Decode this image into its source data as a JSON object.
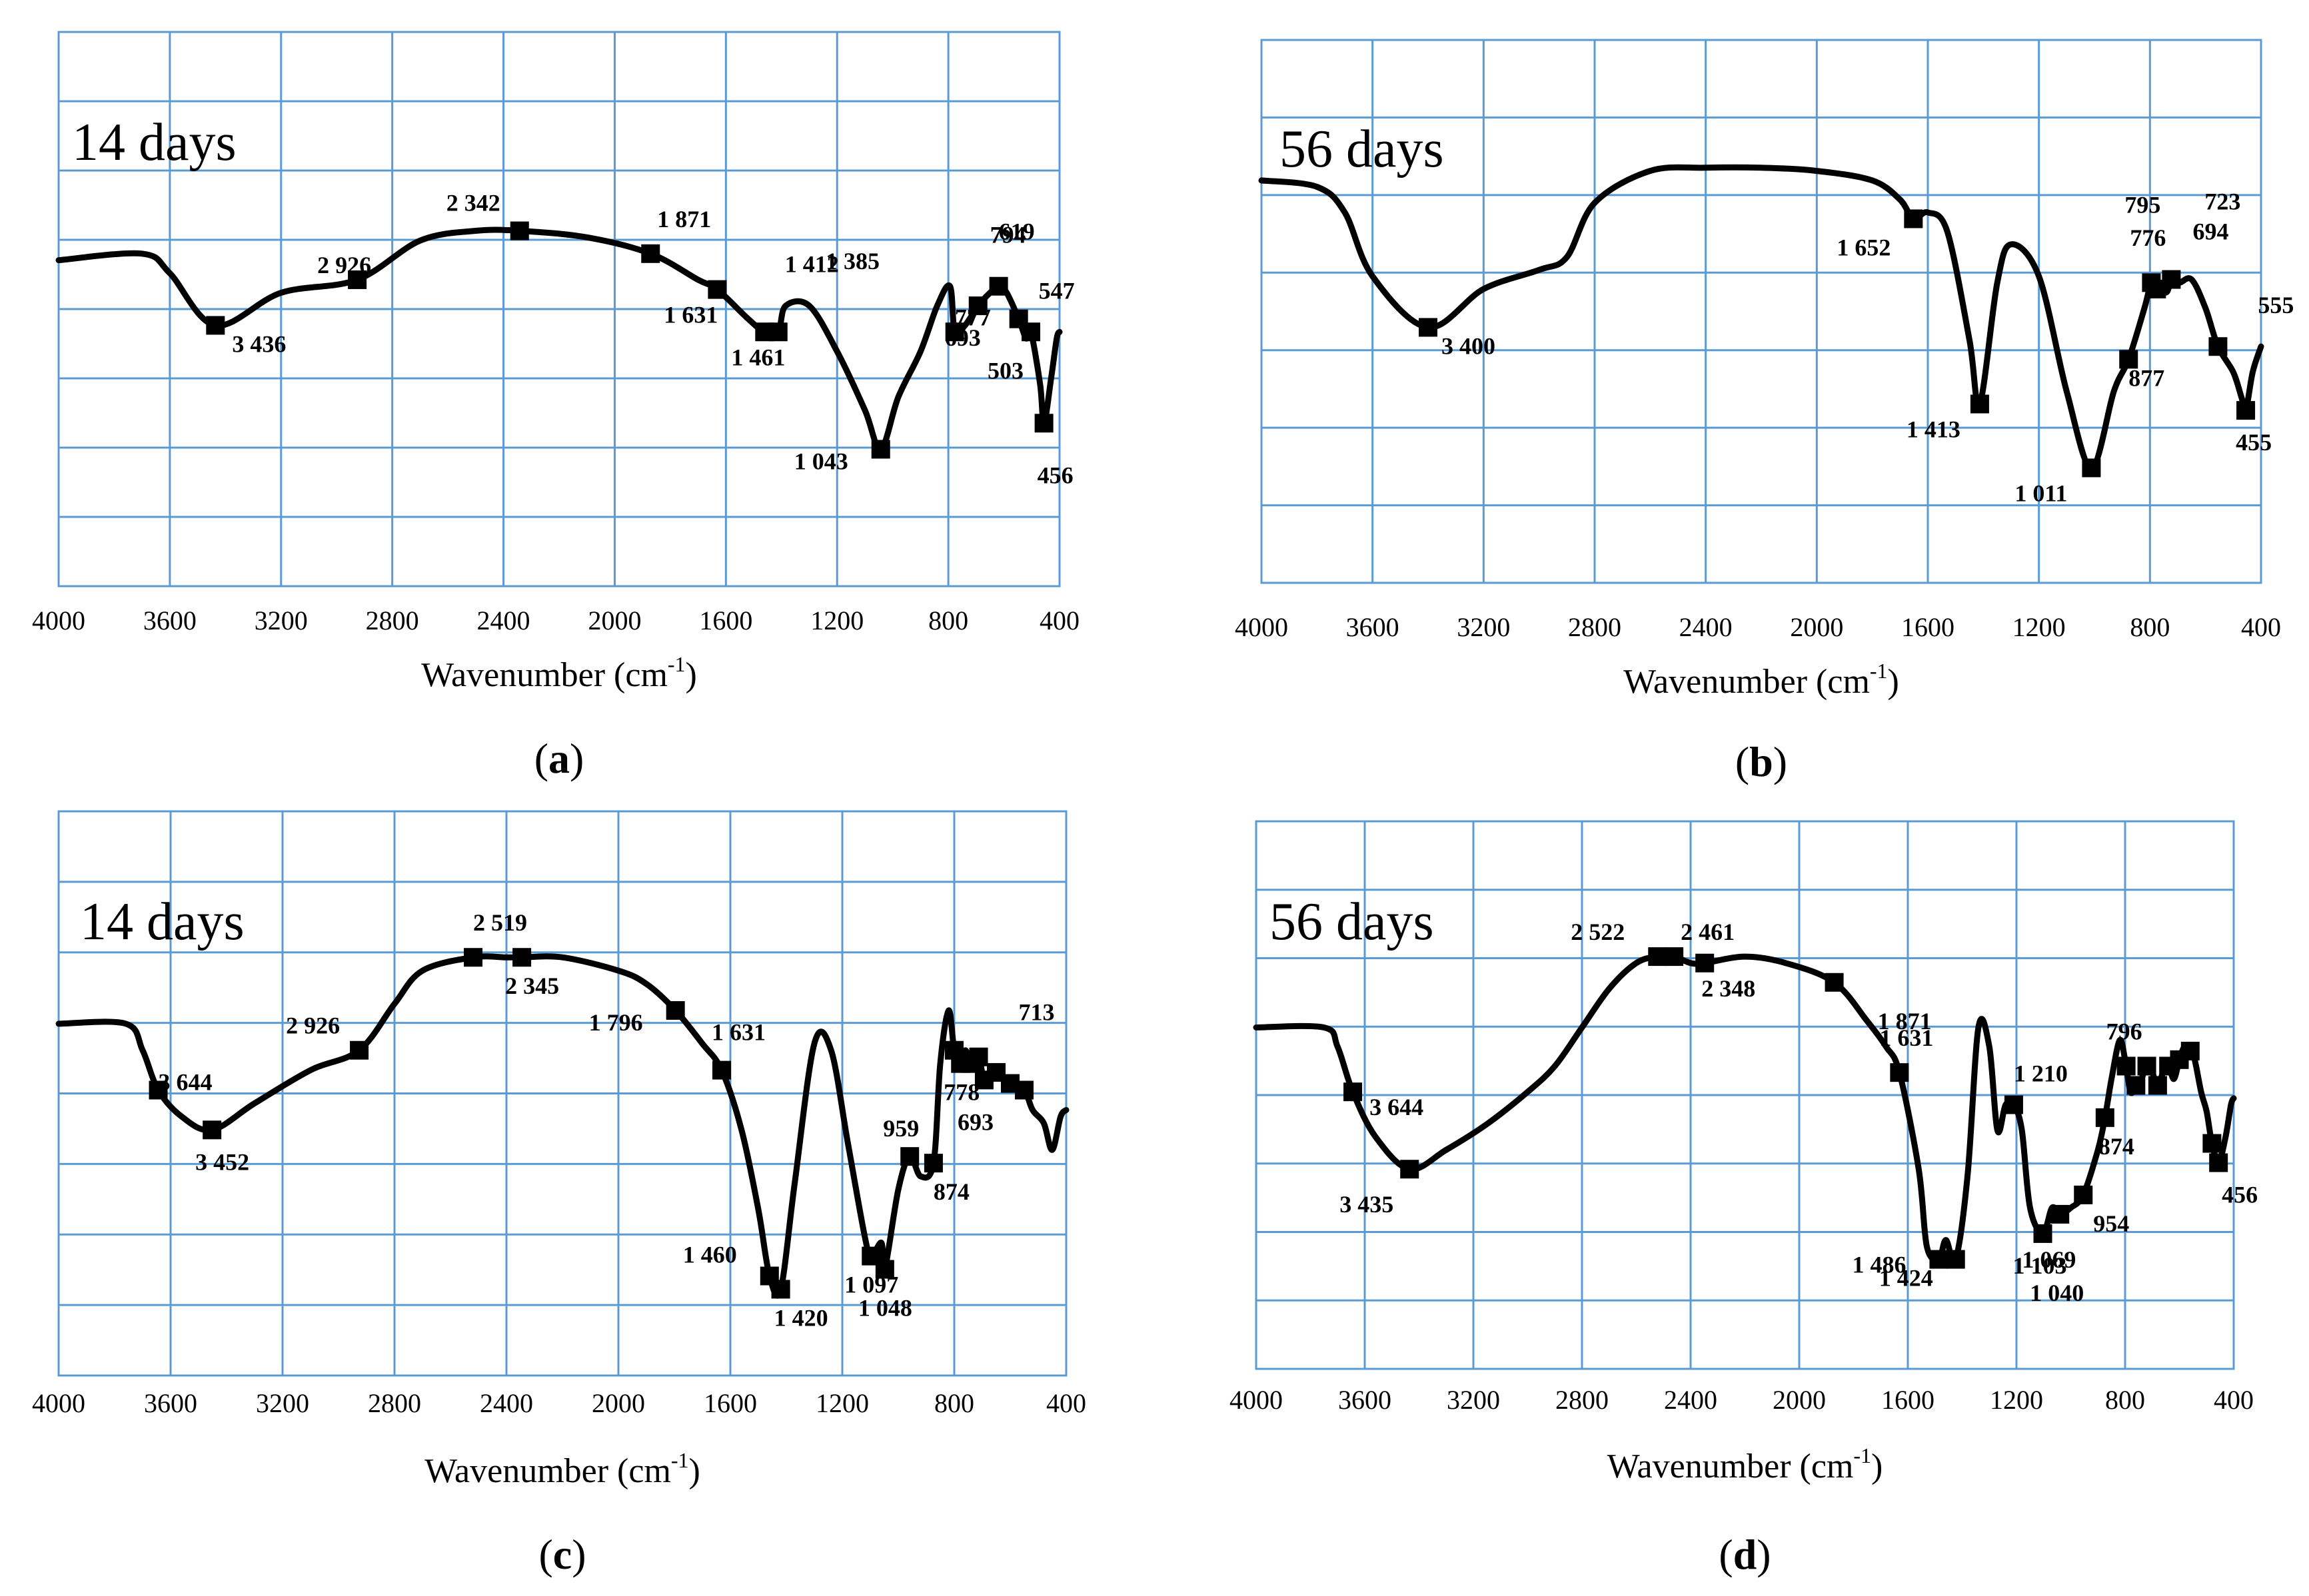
{
  "axis_label": "Wavenumber (cm",
  "axis_label_sup": "-1",
  "axis_label_end": ")",
  "chart_data": [
    {
      "type": "line",
      "panel": "a",
      "title": "14 days",
      "xlabel": "Wavenumber (cm-1)",
      "xlim": [
        4000,
        400
      ],
      "xticks": [
        "4000",
        "3600",
        "3200",
        "2800",
        "2400",
        "2000",
        "1600",
        "1200",
        "800",
        "400"
      ],
      "x_tick_values": [
        4000,
        3600,
        3200,
        2800,
        2400,
        2000,
        1600,
        1200,
        800,
        400
      ],
      "ylim": [
        0,
        8.5
      ],
      "grid": true,
      "x": [
        4000,
        3700,
        3600,
        3436,
        3200,
        2926,
        2700,
        2500,
        2342,
        2100,
        1871,
        1700,
        1631,
        1520,
        1461,
        1412,
        1385,
        1300,
        1200,
        1100,
        1043,
        980,
        900,
        840,
        794,
        777,
        740,
        693,
        650,
        619,
        590,
        547,
        520,
        503,
        470,
        456,
        430,
        410,
        400
      ],
      "y": [
        5.0,
        5.1,
        4.8,
        4.0,
        4.5,
        4.7,
        5.3,
        5.45,
        5.45,
        5.35,
        5.1,
        4.7,
        4.55,
        4.1,
        3.9,
        3.9,
        4.3,
        4.3,
        3.6,
        2.7,
        2.1,
        2.9,
        3.6,
        4.3,
        4.6,
        3.9,
        4.0,
        4.3,
        4.5,
        4.6,
        4.5,
        4.1,
        3.8,
        3.9,
        3.1,
        2.5,
        3.2,
        3.8,
        3.9
      ],
      "markers": [
        3436,
        2926,
        2342,
        1871,
        1631,
        1461,
        1412,
        1043,
        777,
        693,
        619,
        547,
        503,
        456
      ],
      "peak_labels": [
        "3 436",
        "2 926",
        "2 342",
        "1 871",
        "1 631",
        "1 461",
        "1 412",
        "1 385",
        "1 043",
        "794",
        "777",
        "693",
        "619",
        "547",
        "503",
        "456"
      ]
    },
    {
      "type": "line",
      "panel": "b",
      "title": "56 days",
      "xlabel": "Wavenumber (cm-1)",
      "xlim": [
        4000,
        400
      ],
      "xticks": [
        "4000",
        "3600",
        "3200",
        "2800",
        "2400",
        "2000",
        "1600",
        "1200",
        "800",
        "400"
      ],
      "x_tick_values": [
        4000,
        3600,
        3200,
        2800,
        2400,
        2000,
        1600,
        1200,
        800,
        400
      ],
      "ylim": [
        0,
        8.5
      ],
      "grid": true,
      "x": [
        4000,
        3800,
        3700,
        3600,
        3400,
        3200,
        3000,
        2900,
        2800,
        2600,
        2400,
        2200,
        2000,
        1800,
        1700,
        1652,
        1600,
        1530,
        1450,
        1413,
        1350,
        1300,
        1200,
        1100,
        1011,
        930,
        877,
        820,
        795,
        776,
        740,
        723,
        694,
        650,
        600,
        555,
        500,
        470,
        455,
        430,
        400
      ],
      "y": [
        6.3,
        6.2,
        5.8,
        4.8,
        4.0,
        4.6,
        4.9,
        5.1,
        5.95,
        6.45,
        6.5,
        6.5,
        6.45,
        6.3,
        6.0,
        5.7,
        5.8,
        5.5,
        3.8,
        2.8,
        4.7,
        5.3,
        4.8,
        3.0,
        1.8,
        3.0,
        3.5,
        4.3,
        4.7,
        4.6,
        4.55,
        4.75,
        4.7,
        4.75,
        4.3,
        3.7,
        3.3,
        2.9,
        2.7,
        3.3,
        3.7
      ],
      "markers": [
        3400,
        1652,
        1413,
        1011,
        877,
        795,
        776,
        723,
        555,
        455
      ],
      "peak_labels": [
        "3 400",
        "1 652",
        "1 413",
        "1 011",
        "877",
        "795",
        "776",
        "723",
        "694",
        "555",
        "455"
      ]
    },
    {
      "type": "line",
      "panel": "c",
      "title": "14 days",
      "xlabel": "Wavenumber (cm-1)",
      "xlim": [
        4000,
        400
      ],
      "xticks": [
        "4000",
        "3600",
        "3200",
        "2800",
        "2400",
        "2000",
        "1600",
        "1200",
        "800",
        "400"
      ],
      "x_tick_values": [
        4000,
        3600,
        3200,
        2800,
        2400,
        2000,
        1600,
        1200,
        800,
        400
      ],
      "ylim": [
        0,
        8.5
      ],
      "grid": true,
      "x": [
        4000,
        3760,
        3700,
        3644,
        3560,
        3452,
        3300,
        3100,
        2926,
        2800,
        2700,
        2519,
        2400,
        2345,
        2200,
        2000,
        1900,
        1796,
        1700,
        1631,
        1560,
        1500,
        1460,
        1420,
        1370,
        1300,
        1240,
        1180,
        1120,
        1097,
        1060,
        1048,
        1000,
        959,
        920,
        874,
        850,
        820,
        800,
        778,
        760,
        740,
        713,
        690,
        660,
        630,
        600,
        550,
        520,
        480,
        450,
        420,
        400
      ],
      "y": [
        5.3,
        5.3,
        4.9,
        4.3,
        3.9,
        3.7,
        4.1,
        4.6,
        4.9,
        5.6,
        6.1,
        6.3,
        6.3,
        6.3,
        6.3,
        6.1,
        5.9,
        5.5,
        5.0,
        4.6,
        3.7,
        2.5,
        1.5,
        1.3,
        2.9,
        5.0,
        4.9,
        3.5,
        2.1,
        1.8,
        2.0,
        1.6,
        2.8,
        3.3,
        3.0,
        3.2,
        4.7,
        5.5,
        4.9,
        4.7,
        4.9,
        4.7,
        4.8,
        4.4,
        4.6,
        4.5,
        4.4,
        4.3,
        4.0,
        3.8,
        3.4,
        3.9,
        4.0
      ],
      "markers": [
        3644,
        3452,
        2926,
        2519,
        2345,
        1796,
        1631,
        1460,
        1420,
        1097,
        1048,
        959,
        874,
        800,
        778,
        740,
        713,
        693,
        650,
        600,
        550
      ],
      "peak_labels": [
        "3 644",
        "3 452",
        "2 926",
        "2 519",
        "2 345",
        "1 796",
        "1 631",
        "1 460",
        "1 420",
        "1 097",
        "1 048",
        "959",
        "874",
        "778",
        "713",
        "693"
      ]
    },
    {
      "type": "line",
      "panel": "d",
      "title": "56 days",
      "xlabel": "Wavenumber (cm-1)",
      "xlim": [
        4000,
        400
      ],
      "xticks": [
        "4000",
        "3600",
        "3200",
        "2800",
        "2400",
        "2000",
        "1600",
        "1200",
        "800",
        "400"
      ],
      "x_tick_values": [
        4000,
        3600,
        3200,
        2800,
        2400,
        2000,
        1600,
        1200,
        800,
        400
      ],
      "ylim": [
        0,
        8.5
      ],
      "grid": true,
      "x": [
        4000,
        3750,
        3700,
        3644,
        3560,
        3435,
        3300,
        3150,
        3000,
        2900,
        2800,
        2700,
        2600,
        2522,
        2461,
        2400,
        2348,
        2200,
        2050,
        1871,
        1750,
        1680,
        1631,
        1560,
        1530,
        1486,
        1460,
        1424,
        1380,
        1340,
        1300,
        1270,
        1240,
        1210,
        1180,
        1150,
        1103,
        1069,
        1040,
        1000,
        954,
        900,
        874,
        850,
        820,
        800,
        780,
        760,
        740,
        720,
        700,
        680,
        660,
        640,
        620,
        600,
        580,
        550,
        520,
        500,
        480,
        456,
        430,
        410,
        400
      ],
      "y": [
        5.3,
        5.3,
        5.0,
        4.3,
        3.6,
        3.1,
        3.4,
        3.8,
        4.3,
        4.7,
        5.3,
        5.9,
        6.3,
        6.4,
        6.4,
        6.3,
        6.3,
        6.4,
        6.3,
        6.0,
        5.4,
        5.0,
        4.6,
        3.1,
        1.9,
        1.7,
        2.0,
        1.7,
        3.0,
        5.3,
        5.0,
        3.7,
        4.1,
        4.1,
        3.7,
        2.5,
        2.1,
        2.5,
        2.4,
        2.5,
        2.7,
        3.4,
        3.9,
        4.5,
        5.1,
        4.8,
        4.3,
        4.4,
        4.5,
        4.7,
        4.6,
        4.4,
        4.6,
        4.7,
        4.5,
        4.8,
        5.0,
        4.9,
        4.3,
        4.0,
        3.5,
        3.2,
        3.6,
        4.1,
        4.2
      ],
      "markers": [
        3644,
        3435,
        2522,
        2461,
        2348,
        1871,
        1631,
        1486,
        1424,
        1210,
        1103,
        1040,
        954,
        874,
        796,
        760,
        720,
        680,
        640,
        600,
        560,
        480,
        456
      ],
      "peak_labels": [
        "3 644",
        "3 435",
        "2 522",
        "2 461",
        "2 348",
        "1 871",
        "1 631",
        "1 486",
        "1 424",
        "1 210",
        "1 103",
        "1 069",
        "1 040",
        "954",
        "874",
        "796",
        "456"
      ]
    }
  ],
  "captions": [
    "a",
    "b",
    "c",
    "d"
  ]
}
